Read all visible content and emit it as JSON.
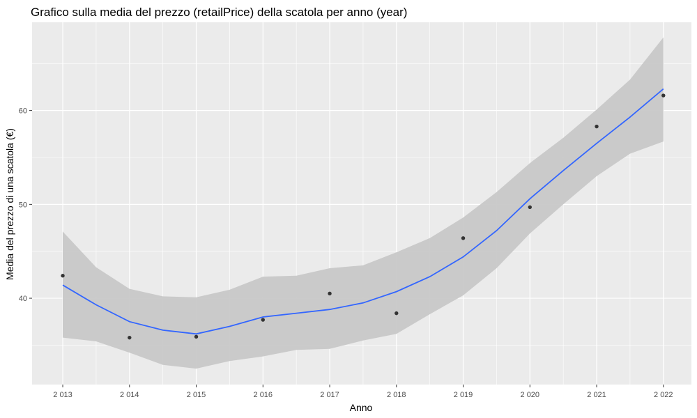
{
  "chart_data": {
    "type": "scatter",
    "title": "Grafico sulla media del prezzo (retailPrice) della scatola per anno (year)",
    "xlabel": "Anno",
    "ylabel": "Media del prezzo di una scatola (€)",
    "x_tick_labels": [
      "2 013",
      "2 014",
      "2 015",
      "2 016",
      "2 017",
      "2 018",
      "2 019",
      "2 020",
      "2 021",
      "2 022"
    ],
    "y_tick_labels": [
      "40",
      "50",
      "60"
    ],
    "xlim": [
      2012.54,
      2022.42
    ],
    "ylim": [
      30.8,
      69.4
    ],
    "x_ticks": [
      2013,
      2014,
      2015,
      2016,
      2017,
      2018,
      2019,
      2020,
      2021,
      2022
    ],
    "y_ticks": [
      40,
      50,
      60
    ],
    "grid": true,
    "points": {
      "x": [
        2013,
        2014,
        2015,
        2016,
        2017,
        2018,
        2019,
        2020,
        2021,
        2022
      ],
      "y": [
        42.4,
        35.8,
        35.9,
        37.7,
        40.5,
        38.4,
        46.4,
        49.7,
        58.3,
        61.6
      ],
      "color": "#333333"
    },
    "smooth": {
      "method": "loess",
      "x": [
        2013,
        2013.5,
        2014,
        2014.5,
        2015,
        2015.5,
        2016,
        2016.5,
        2017,
        2017.5,
        2018,
        2018.5,
        2019,
        2019.5,
        2020,
        2020.5,
        2021,
        2021.5,
        2022
      ],
      "y": [
        41.4,
        39.3,
        37.5,
        36.6,
        36.2,
        37.0,
        38.0,
        38.4,
        38.8,
        39.5,
        40.7,
        42.3,
        44.4,
        47.2,
        50.6,
        53.6,
        56.5,
        59.3,
        62.3
      ],
      "ymin": [
        35.8,
        35.4,
        34.2,
        32.9,
        32.5,
        33.3,
        33.8,
        34.5,
        34.6,
        35.5,
        36.2,
        38.3,
        40.3,
        43.2,
        46.9,
        50.0,
        53.0,
        55.4,
        56.7
      ],
      "ymax": [
        47.1,
        43.3,
        41.0,
        40.2,
        40.1,
        40.9,
        42.3,
        42.4,
        43.2,
        43.5,
        44.9,
        46.4,
        48.6,
        51.3,
        54.4,
        57.1,
        60.1,
        63.3,
        67.8
      ],
      "line_color": "#3366FF",
      "band_color": "#C8C8C8"
    },
    "panel_background": "#EBEBEB",
    "gridline_color": "#FFFFFF"
  }
}
